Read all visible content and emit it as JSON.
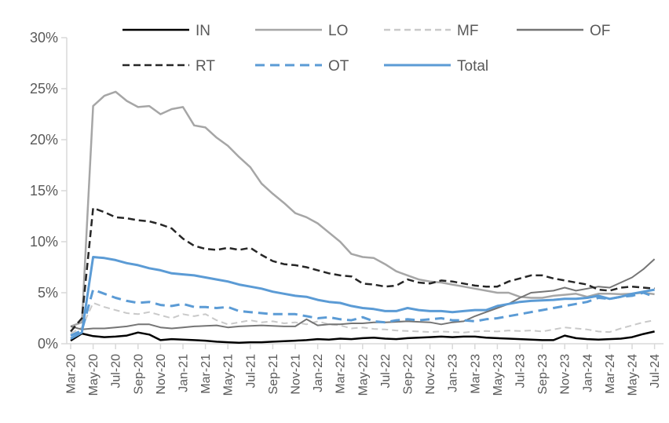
{
  "chart_data": {
    "type": "line",
    "title": "",
    "xlabel": "",
    "ylabel": "",
    "ylim": [
      0,
      30
    ],
    "grid": false,
    "legend_position": "top",
    "colors": {
      "blue_accent": "#5B9BD5",
      "gray_light": "#C9C9C9",
      "gray_mid": "#A6A6A6",
      "gray_dark": "#757575",
      "near_black": "#262626",
      "black": "#000000",
      "axis_line": "#D9D9D9",
      "label_text": "#595959"
    },
    "y_tick_labels": [
      "0%",
      "5%",
      "10%",
      "15%",
      "20%",
      "25%",
      "30%"
    ],
    "x_tick_labels": [
      "Mar-20",
      "May-20",
      "Jul-20",
      "Sep-20",
      "Nov-20",
      "Jan-21",
      "Mar-21",
      "May-21",
      "Jul-21",
      "Sep-21",
      "Nov-21",
      "Jan-22",
      "Mar-22",
      "May-22",
      "Jul-22",
      "Sep-22",
      "Nov-22",
      "Jan-23",
      "Mar-23",
      "May-23",
      "Jul-23",
      "Sep-23",
      "Nov-23",
      "Jan-24",
      "Mar-24",
      "May-24",
      "Jul-24"
    ],
    "x": [
      "Mar-20",
      "Apr-20",
      "May-20",
      "Jun-20",
      "Jul-20",
      "Aug-20",
      "Sep-20",
      "Oct-20",
      "Nov-20",
      "Dec-20",
      "Jan-21",
      "Feb-21",
      "Mar-21",
      "Apr-21",
      "May-21",
      "Jun-21",
      "Jul-21",
      "Aug-21",
      "Sep-21",
      "Oct-21",
      "Nov-21",
      "Dec-21",
      "Jan-22",
      "Feb-22",
      "Mar-22",
      "Apr-22",
      "May-22",
      "Jun-22",
      "Jul-22",
      "Aug-22",
      "Sep-22",
      "Oct-22",
      "Nov-22",
      "Dec-22",
      "Jan-23",
      "Feb-23",
      "Mar-23",
      "Apr-23",
      "May-23",
      "Jun-23",
      "Jul-23",
      "Aug-23",
      "Sep-23",
      "Oct-23",
      "Nov-23",
      "Dec-23",
      "Jan-24",
      "Feb-24",
      "Mar-24",
      "Apr-24",
      "May-24",
      "Jun-24",
      "Jul-24"
    ],
    "series": [
      {
        "name": "IN",
        "color": "#000000",
        "style": "solid",
        "width": 2.5,
        "values": [
          0.3,
          1.0,
          0.75,
          0.65,
          0.7,
          0.8,
          1.1,
          0.9,
          0.35,
          0.45,
          0.4,
          0.35,
          0.3,
          0.2,
          0.15,
          0.1,
          0.15,
          0.15,
          0.2,
          0.25,
          0.3,
          0.35,
          0.45,
          0.4,
          0.5,
          0.45,
          0.55,
          0.6,
          0.5,
          0.45,
          0.55,
          0.6,
          0.65,
          0.7,
          0.65,
          0.7,
          0.7,
          0.6,
          0.55,
          0.5,
          0.45,
          0.4,
          0.35,
          0.35,
          0.8,
          0.55,
          0.45,
          0.4,
          0.45,
          0.5,
          0.65,
          0.95,
          1.2
        ]
      },
      {
        "name": "LO",
        "color": "#A6A6A6",
        "style": "solid",
        "width": 2.5,
        "values": [
          1.7,
          2.1,
          23.3,
          24.3,
          24.7,
          23.8,
          23.2,
          23.3,
          22.5,
          23.0,
          23.2,
          21.4,
          21.2,
          20.2,
          19.4,
          18.3,
          17.3,
          15.7,
          14.7,
          13.8,
          12.8,
          12.4,
          11.8,
          10.9,
          10.0,
          8.8,
          8.5,
          8.4,
          7.8,
          7.1,
          6.7,
          6.3,
          6.1,
          6.0,
          5.8,
          5.6,
          5.4,
          5.2,
          5.0,
          5.0,
          4.6,
          4.5,
          4.5,
          4.7,
          4.8,
          4.9,
          4.6,
          4.9,
          4.9,
          4.85,
          4.9,
          5.0,
          4.85
        ]
      },
      {
        "name": "MF",
        "color": "#C9C9C9",
        "style": "dashed",
        "width": 2,
        "values": [
          1.0,
          1.6,
          4.0,
          3.6,
          3.3,
          3.0,
          2.9,
          3.1,
          2.8,
          2.5,
          2.9,
          2.7,
          2.9,
          2.3,
          1.9,
          2.1,
          2.3,
          2.1,
          2.2,
          2.0,
          2.1,
          1.9,
          2.2,
          1.9,
          1.8,
          1.5,
          1.6,
          1.45,
          1.4,
          1.3,
          1.25,
          1.2,
          1.15,
          1.2,
          1.15,
          1.1,
          1.2,
          1.25,
          1.2,
          1.3,
          1.25,
          1.3,
          1.2,
          1.4,
          1.6,
          1.5,
          1.4,
          1.2,
          1.15,
          1.5,
          1.8,
          2.1,
          2.3
        ]
      },
      {
        "name": "OF",
        "color": "#757575",
        "style": "solid",
        "width": 2,
        "values": [
          1.7,
          1.4,
          1.5,
          1.5,
          1.6,
          1.7,
          1.9,
          1.9,
          1.6,
          1.5,
          1.6,
          1.7,
          1.75,
          1.8,
          1.6,
          1.7,
          1.75,
          1.8,
          1.75,
          1.7,
          1.7,
          2.4,
          1.8,
          1.9,
          1.9,
          2.0,
          2.0,
          2.1,
          2.1,
          2.15,
          2.2,
          2.15,
          2.1,
          1.9,
          2.1,
          2.2,
          2.7,
          3.1,
          3.5,
          3.9,
          4.5,
          5.0,
          5.1,
          5.2,
          5.5,
          5.2,
          5.4,
          5.6,
          5.5,
          6.0,
          6.5,
          7.3,
          8.3
        ]
      },
      {
        "name": "RT",
        "color": "#262626",
        "style": "dashed",
        "width": 2.5,
        "values": [
          1.2,
          2.5,
          13.3,
          12.9,
          12.4,
          12.3,
          12.1,
          12.0,
          11.7,
          11.3,
          10.3,
          9.6,
          9.3,
          9.2,
          9.4,
          9.2,
          9.4,
          8.7,
          8.1,
          7.8,
          7.7,
          7.5,
          7.2,
          6.9,
          6.7,
          6.6,
          5.9,
          5.8,
          5.6,
          5.7,
          6.3,
          6.0,
          5.9,
          6.2,
          6.1,
          5.9,
          5.7,
          5.6,
          5.6,
          6.1,
          6.4,
          6.7,
          6.7,
          6.4,
          6.2,
          6.0,
          5.8,
          5.3,
          5.2,
          5.5,
          5.6,
          5.5,
          5.4
        ]
      },
      {
        "name": "OT",
        "color": "#5B9BD5",
        "style": "dashed",
        "width": 3,
        "values": [
          0.8,
          1.3,
          5.3,
          4.9,
          4.5,
          4.2,
          4.0,
          4.1,
          3.8,
          3.7,
          3.9,
          3.6,
          3.6,
          3.5,
          3.6,
          3.2,
          3.1,
          3.0,
          2.9,
          2.9,
          2.9,
          2.7,
          2.5,
          2.6,
          2.4,
          2.3,
          2.6,
          2.2,
          2.1,
          2.3,
          2.4,
          2.3,
          2.4,
          2.5,
          2.3,
          2.3,
          2.2,
          2.4,
          2.5,
          2.7,
          2.9,
          3.1,
          3.3,
          3.5,
          3.7,
          3.9,
          4.1,
          4.5,
          4.4,
          4.6,
          4.7,
          5.0,
          4.6
        ]
      },
      {
        "name": "Total",
        "color": "#5B9BD5",
        "style": "solid",
        "width": 3,
        "values": [
          0.5,
          1.1,
          8.5,
          8.4,
          8.2,
          7.9,
          7.7,
          7.4,
          7.2,
          6.9,
          6.8,
          6.7,
          6.5,
          6.3,
          6.1,
          5.8,
          5.6,
          5.4,
          5.1,
          4.9,
          4.7,
          4.6,
          4.3,
          4.1,
          4.0,
          3.7,
          3.5,
          3.4,
          3.2,
          3.2,
          3.5,
          3.3,
          3.2,
          3.2,
          3.1,
          3.2,
          3.3,
          3.3,
          3.7,
          3.9,
          4.1,
          4.2,
          4.25,
          4.3,
          4.4,
          4.4,
          4.5,
          4.7,
          4.4,
          4.6,
          4.9,
          5.1,
          5.3
        ]
      }
    ]
  }
}
